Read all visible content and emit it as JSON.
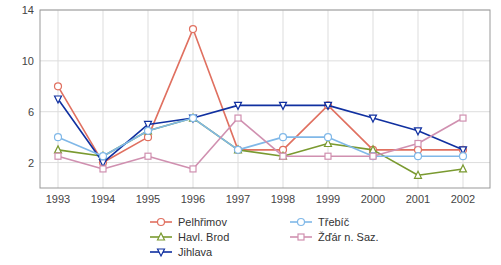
{
  "chart_data": {
    "type": "line",
    "x": [
      1993,
      1994,
      1995,
      1996,
      1997,
      1998,
      1999,
      2000,
      2001,
      2002
    ],
    "xlim": [
      1992.6,
      2002.6
    ],
    "xticks": [
      1993,
      1994,
      1995,
      1996,
      1997,
      1998,
      1999,
      2000,
      2001,
      2002
    ],
    "ylim": [
      0,
      14
    ],
    "yticks": [
      2,
      6,
      10,
      14
    ],
    "grid": true,
    "legend": "bottom",
    "series": [
      {
        "name": "Pelhřimov",
        "color": "#e07060",
        "marker": "circle",
        "values": [
          8.0,
          2.0,
          4.0,
          12.5,
          3.0,
          3.0,
          6.5,
          3.0,
          3.0,
          3.0
        ]
      },
      {
        "name": "Havl. Brod",
        "color": "#7a9a30",
        "marker": "triangle-up",
        "values": [
          3.0,
          2.5,
          4.5,
          5.5,
          3.0,
          2.5,
          3.5,
          3.0,
          1.0,
          1.5
        ]
      },
      {
        "name": "Jihlava",
        "color": "#1030a0",
        "marker": "triangle-down",
        "values": [
          7.0,
          2.0,
          5.0,
          5.5,
          6.5,
          6.5,
          6.5,
          5.5,
          4.5,
          3.0
        ]
      },
      {
        "name": "Třebíč",
        "color": "#80b8e8",
        "marker": "circle",
        "values": [
          4.0,
          2.5,
          4.5,
          5.5,
          3.0,
          4.0,
          4.0,
          2.5,
          2.5,
          2.5
        ]
      },
      {
        "name": "Žďár n. Saz.",
        "color": "#d090b0",
        "marker": "square",
        "values": [
          2.5,
          1.5,
          2.5,
          1.5,
          5.5,
          2.5,
          2.5,
          2.5,
          3.5,
          5.5
        ]
      }
    ]
  }
}
